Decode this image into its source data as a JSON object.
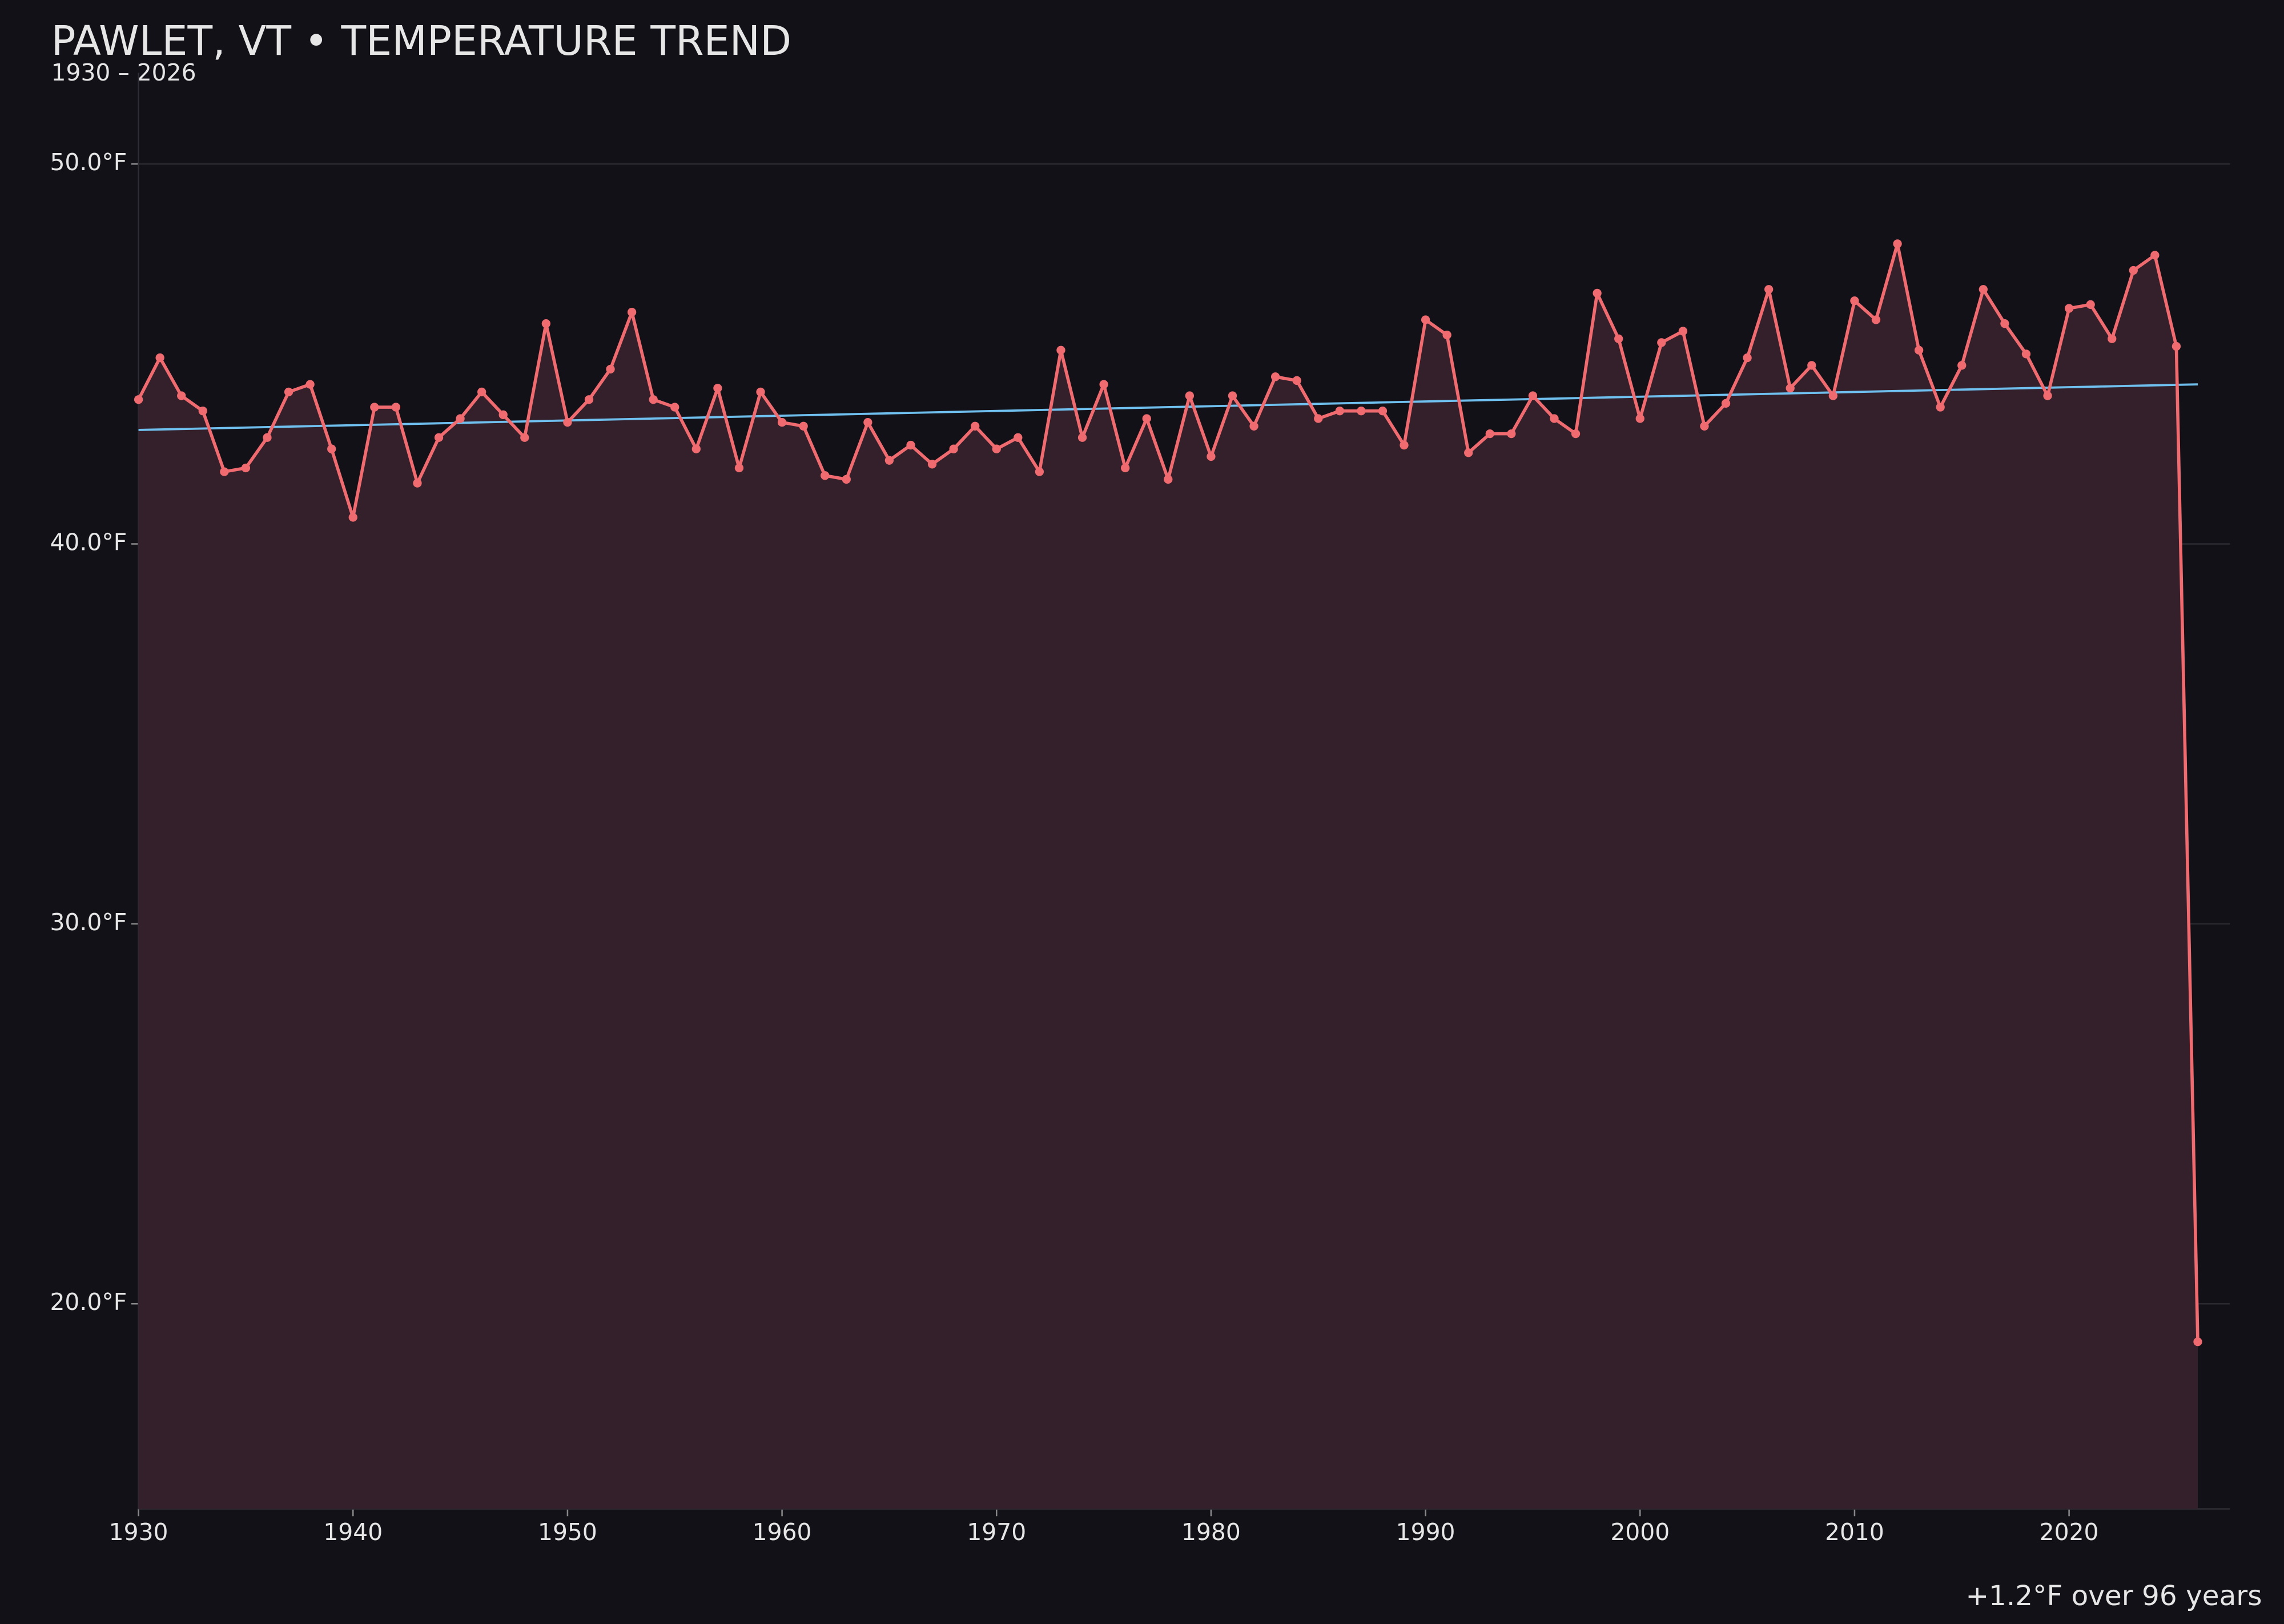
{
  "chart_data": {
    "type": "line",
    "title": "PAWLET, VT • TEMPERATURE TREND",
    "subtitle": "1930 – 2026",
    "x": [
      1930,
      1931,
      1932,
      1933,
      1934,
      1935,
      1936,
      1937,
      1938,
      1939,
      1940,
      1941,
      1942,
      1943,
      1944,
      1945,
      1946,
      1947,
      1948,
      1949,
      1950,
      1951,
      1952,
      1953,
      1954,
      1955,
      1956,
      1957,
      1958,
      1959,
      1960,
      1961,
      1962,
      1963,
      1964,
      1965,
      1966,
      1967,
      1968,
      1969,
      1970,
      1971,
      1972,
      1973,
      1974,
      1975,
      1976,
      1977,
      1978,
      1979,
      1980,
      1981,
      1982,
      1983,
      1984,
      1985,
      1986,
      1987,
      1988,
      1989,
      1990,
      1991,
      1992,
      1993,
      1994,
      1995,
      1996,
      1997,
      1998,
      1999,
      2000,
      2001,
      2002,
      2003,
      2004,
      2005,
      2006,
      2007,
      2008,
      2009,
      2010,
      2011,
      2012,
      2013,
      2014,
      2015,
      2016,
      2017,
      2018,
      2019,
      2020,
      2021,
      2022,
      2023,
      2024,
      2025,
      2026
    ],
    "values": [
      43.8,
      44.9,
      43.9,
      43.5,
      41.9,
      42.0,
      42.8,
      44.0,
      44.2,
      42.5,
      40.7,
      43.6,
      43.6,
      41.6,
      42.8,
      43.3,
      44.0,
      43.4,
      42.8,
      45.8,
      43.2,
      43.8,
      44.6,
      46.1,
      43.8,
      43.6,
      42.5,
      44.1,
      42.0,
      44.0,
      43.2,
      43.1,
      41.8,
      41.7,
      43.2,
      42.2,
      42.6,
      42.1,
      42.5,
      43.1,
      42.5,
      42.8,
      41.9,
      45.1,
      42.8,
      44.2,
      42.0,
      43.3,
      41.7,
      43.9,
      42.3,
      43.9,
      43.1,
      44.4,
      44.3,
      43.3,
      43.5,
      43.5,
      43.5,
      42.6,
      45.9,
      45.5,
      42.4,
      42.9,
      42.9,
      43.9,
      43.3,
      42.9,
      46.6,
      45.4,
      43.3,
      45.3,
      45.6,
      43.1,
      43.7,
      44.9,
      46.7,
      44.1,
      44.7,
      43.9,
      46.4,
      45.9,
      47.9,
      45.1,
      43.6,
      44.7,
      46.7,
      45.8,
      45.0,
      43.9,
      46.2,
      46.3,
      45.4,
      47.2,
      47.6,
      45.2,
      19.0
    ],
    "color": "#f06b70",
    "fill_color": "#33202a",
    "trend": {
      "x": [
        1930,
        2026
      ],
      "values": [
        43.0,
        44.2
      ],
      "color": "#6fc0ef"
    },
    "annotation": "+1.2°F over 96 years",
    "xlim": [
      1930,
      2027.5
    ],
    "ylim": [
      14.6,
      52.4
    ],
    "xticks": [
      1930,
      1940,
      1950,
      1960,
      1970,
      1980,
      1990,
      2000,
      2010,
      2020
    ],
    "yticks": [
      {
        "value": 20,
        "label": "20.0°F"
      },
      {
        "value": 30,
        "label": "30.0°F"
      },
      {
        "value": 40,
        "label": "40.0°F"
      },
      {
        "value": 50,
        "label": "50.0°F"
      }
    ],
    "grid": true
  }
}
